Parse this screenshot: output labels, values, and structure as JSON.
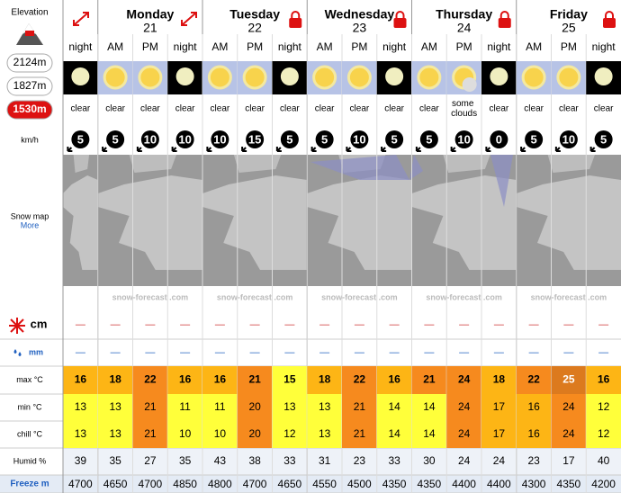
{
  "sidebar": {
    "elevation_label": "Elevation",
    "elevations": [
      "2124m",
      "1827m",
      "1530m"
    ],
    "selected_elevation": 2,
    "wind_unit": "km/h",
    "snow_map": "Snow map",
    "more": "More",
    "rows": {
      "snow": "cm",
      "rain": "mm",
      "max": "max °C",
      "min": "min °C",
      "chill": "chill °C",
      "humid": "Humid %",
      "freeze": "Freeze m"
    }
  },
  "days": [
    {
      "name": "Monday",
      "date": 21
    },
    {
      "name": "Tuesday",
      "date": 22
    },
    {
      "name": "Wednesday",
      "date": 23
    },
    {
      "name": "Thursday",
      "date": 24
    },
    {
      "name": "Friday",
      "date": 25
    }
  ],
  "columns": {
    "periods": [
      "night",
      "AM",
      "PM",
      "night",
      "AM",
      "PM",
      "night",
      "AM",
      "PM",
      "night",
      "AM",
      "PM",
      "night",
      "AM",
      "PM",
      "night"
    ],
    "summary": [
      "clear",
      "clear",
      "clear",
      "clear",
      "clear",
      "clear",
      "clear",
      "clear",
      "clear",
      "clear",
      "clear",
      "some clouds",
      "clear",
      "clear",
      "clear",
      "clear"
    ],
    "wind": [
      5,
      5,
      10,
      10,
      10,
      15,
      5,
      5,
      10,
      5,
      5,
      10,
      0,
      5,
      10,
      5
    ],
    "snow": [
      "—",
      "—",
      "—",
      "—",
      "—",
      "—",
      "—",
      "—",
      "—",
      "—",
      "—",
      "—",
      "—",
      "—",
      "—",
      "—"
    ],
    "rain": [
      "—",
      "—",
      "—",
      "—",
      "—",
      "—",
      "—",
      "—",
      "—",
      "—",
      "—",
      "—",
      "—",
      "—",
      "—",
      "—"
    ],
    "max": [
      16,
      18,
      22,
      16,
      16,
      21,
      15,
      18,
      22,
      16,
      21,
      24,
      18,
      22,
      25,
      16
    ],
    "min": [
      13,
      13,
      21,
      11,
      11,
      20,
      13,
      13,
      21,
      14,
      14,
      24,
      17,
      16,
      24,
      12
    ],
    "chill": [
      13,
      13,
      21,
      10,
      10,
      20,
      12,
      13,
      21,
      14,
      14,
      24,
      17,
      16,
      24,
      12
    ],
    "humid": [
      39,
      35,
      27,
      35,
      43,
      38,
      33,
      31,
      23,
      33,
      30,
      24,
      24,
      23,
      17,
      40
    ],
    "freeze": [
      4700,
      4650,
      4700,
      4850,
      4800,
      4700,
      4650,
      4550,
      4500,
      4350,
      4350,
      4400,
      4400,
      4300,
      4350,
      4200
    ]
  },
  "watermark": "snow-forecast .com"
}
